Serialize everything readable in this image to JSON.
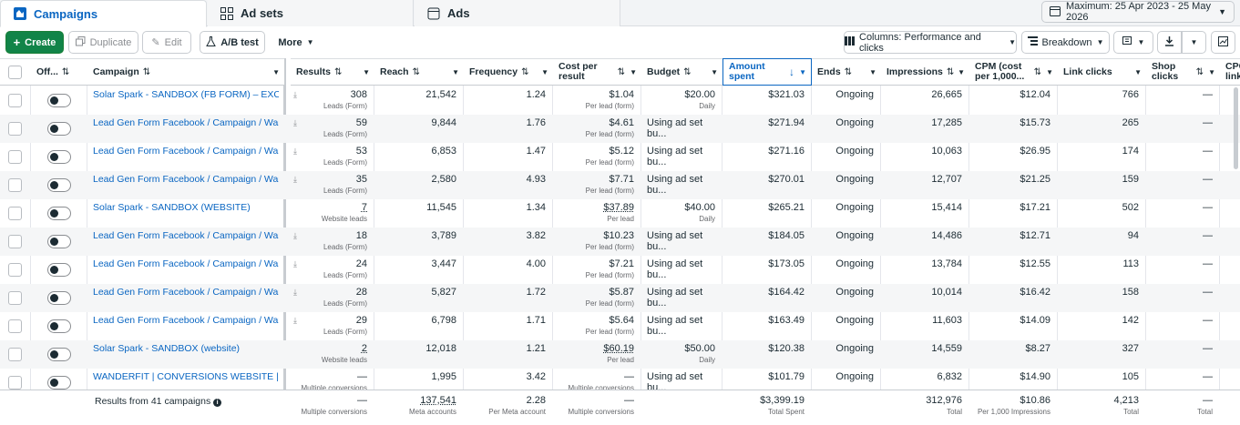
{
  "tabs": [
    {
      "label": "Campaigns",
      "icon": "campaigns-icon"
    },
    {
      "label": "Ad sets",
      "icon": "ad-sets-icon"
    },
    {
      "label": "Ads",
      "icon": "ads-icon"
    }
  ],
  "date_range": "Maximum: 25 Apr 2023 - 25 May 2026",
  "toolbar": {
    "create": "Create",
    "duplicate": "Duplicate",
    "edit": "Edit",
    "ab_test": "A/B test",
    "more": "More",
    "columns": "Columns: Performance and clicks",
    "breakdown": "Breakdown"
  },
  "columns": {
    "off": "Off...",
    "campaign": "Campaign",
    "results": "Results",
    "reach": "Reach",
    "frequency": "Frequency",
    "cost_per_result": "Cost per result",
    "budget": "Budget",
    "amount_spent": "Amount spent",
    "ends": "Ends",
    "impressions": "Impressions",
    "cpm": "CPM (cost per 1,000...",
    "link_clicks": "Link clicks",
    "shop_clicks": "Shop clicks",
    "cpc": "CPC link"
  },
  "rows": [
    {
      "campaign": "Solar Spark - SANDBOX (FB FORM) – EXCL I...",
      "results": "308",
      "results_sub": "Leads (Form)",
      "reach": "21,542",
      "frequency": "1.24",
      "cpr": "$1.04",
      "cpr_sub": "Per lead (form)",
      "budget": "$20.00",
      "budget_sub": "Daily",
      "spent": "$321.03",
      "ends": "Ongoing",
      "impressions": "26,665",
      "cpm": "$12.04",
      "link_clicks": "766",
      "shop_clicks": "—"
    },
    {
      "campaign": "Lead Gen Form Facebook / Campaign / Wand...",
      "results": "59",
      "results_sub": "Leads (Form)",
      "reach": "9,844",
      "frequency": "1.76",
      "cpr": "$4.61",
      "cpr_sub": "Per lead (form)",
      "budget": "Using ad set bu...",
      "budget_sub": "",
      "spent": "$271.94",
      "ends": "Ongoing",
      "impressions": "17,285",
      "cpm": "$15.73",
      "link_clicks": "265",
      "shop_clicks": "—"
    },
    {
      "campaign": "Lead Gen Form Facebook / Campaign / Wand...",
      "results": "53",
      "results_sub": "Leads (Form)",
      "reach": "6,853",
      "frequency": "1.47",
      "cpr": "$5.12",
      "cpr_sub": "Per lead (form)",
      "budget": "Using ad set bu...",
      "budget_sub": "",
      "spent": "$271.16",
      "ends": "Ongoing",
      "impressions": "10,063",
      "cpm": "$26.95",
      "link_clicks": "174",
      "shop_clicks": "—"
    },
    {
      "campaign": "Lead Gen Form Facebook / Campaign / Wand...",
      "results": "35",
      "results_sub": "Leads (Form)",
      "reach": "2,580",
      "frequency": "4.93",
      "cpr": "$7.71",
      "cpr_sub": "Per lead (form)",
      "budget": "Using ad set bu...",
      "budget_sub": "",
      "spent": "$270.01",
      "ends": "Ongoing",
      "impressions": "12,707",
      "cpm": "$21.25",
      "link_clicks": "159",
      "shop_clicks": "—"
    },
    {
      "campaign": "Solar Spark - SANDBOX (WEBSITE)",
      "results": "7",
      "results_sub": "Website leads",
      "reach": "11,545",
      "frequency": "1.34",
      "cpr": "$37.89",
      "cpr_sub": "Per lead",
      "budget": "$40.00",
      "budget_sub": "Daily",
      "spent": "$265.21",
      "ends": "Ongoing",
      "impressions": "15,414",
      "cpm": "$17.21",
      "link_clicks": "502",
      "shop_clicks": "—"
    },
    {
      "campaign": "Lead Gen Form Facebook / Campaign / Wand...",
      "results": "18",
      "results_sub": "Leads (Form)",
      "reach": "3,789",
      "frequency": "3.82",
      "cpr": "$10.23",
      "cpr_sub": "Per lead (form)",
      "budget": "Using ad set bu...",
      "budget_sub": "",
      "spent": "$184.05",
      "ends": "Ongoing",
      "impressions": "14,486",
      "cpm": "$12.71",
      "link_clicks": "94",
      "shop_clicks": "—"
    },
    {
      "campaign": "Lead Gen Form Facebook / Campaign / Wand...",
      "results": "24",
      "results_sub": "Leads (Form)",
      "reach": "3,447",
      "frequency": "4.00",
      "cpr": "$7.21",
      "cpr_sub": "Per lead (form)",
      "budget": "Using ad set bu...",
      "budget_sub": "",
      "spent": "$173.05",
      "ends": "Ongoing",
      "impressions": "13,784",
      "cpm": "$12.55",
      "link_clicks": "113",
      "shop_clicks": "—"
    },
    {
      "campaign": "Lead Gen Form Facebook / Campaign / Wand...",
      "results": "28",
      "results_sub": "Leads (Form)",
      "reach": "5,827",
      "frequency": "1.72",
      "cpr": "$5.87",
      "cpr_sub": "Per lead (form)",
      "budget": "Using ad set bu...",
      "budget_sub": "",
      "spent": "$164.42",
      "ends": "Ongoing",
      "impressions": "10,014",
      "cpm": "$16.42",
      "link_clicks": "158",
      "shop_clicks": "—"
    },
    {
      "campaign": "Lead Gen Form Facebook / Campaign / Wand...",
      "results": "29",
      "results_sub": "Leads (Form)",
      "reach": "6,798",
      "frequency": "1.71",
      "cpr": "$5.64",
      "cpr_sub": "Per lead (form)",
      "budget": "Using ad set bu...",
      "budget_sub": "",
      "spent": "$163.49",
      "ends": "Ongoing",
      "impressions": "11,603",
      "cpm": "$14.09",
      "link_clicks": "142",
      "shop_clicks": "—"
    },
    {
      "campaign": "Solar Spark - SANDBOX (website)",
      "results": "2",
      "results_sub": "Website leads",
      "reach": "12,018",
      "frequency": "1.21",
      "cpr": "$60.19",
      "cpr_sub": "Per lead",
      "budget": "$50.00",
      "budget_sub": "Daily",
      "spent": "$120.38",
      "ends": "Ongoing",
      "impressions": "14,559",
      "cpm": "$8.27",
      "link_clicks": "327",
      "shop_clicks": "—"
    },
    {
      "campaign": "WANDERFIT | CONVERSIONS WEBSITE | INC",
      "results": "—",
      "results_sub": "Multiple conversions",
      "reach": "1,995",
      "frequency": "3.42",
      "cpr": "—",
      "cpr_sub": "Multiple conversions",
      "budget": "Using ad set bu...",
      "budget_sub": "",
      "spent": "$101.79",
      "ends": "Ongoing",
      "impressions": "6,832",
      "cpm": "$14.90",
      "link_clicks": "105",
      "shop_clicks": "—"
    }
  ],
  "footer": {
    "label": "Results from 41 campaigns",
    "results": "—",
    "results_sub": "Multiple conversions",
    "reach": "137,541",
    "reach_sub": "Meta accounts",
    "frequency": "2.28",
    "frequency_sub": "Per Meta account",
    "cpr": "—",
    "cpr_sub": "Multiple conversions",
    "spent": "$3,399.19",
    "spent_sub": "Total Spent",
    "impressions": "312,976",
    "impressions_sub": "Total",
    "cpm": "$10.86",
    "cpm_sub": "Per 1,000 Impressions",
    "link_clicks": "4,213",
    "link_clicks_sub": "Total",
    "shop_clicks": "—",
    "shop_clicks_sub": "Total"
  },
  "colors": {
    "accent": "#0a66c2",
    "create_green": "#118448"
  }
}
